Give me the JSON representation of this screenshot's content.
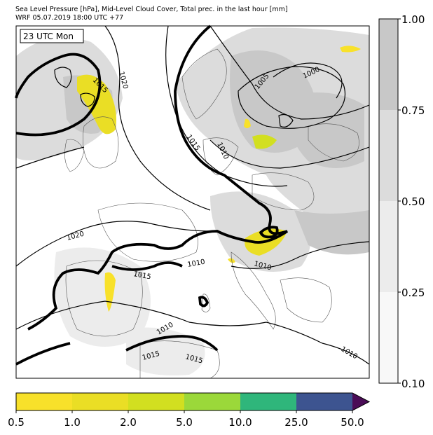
{
  "header": {
    "line1": "Sea Level Pressure [hPa], Mid-Level Cloud Cover, Total prec. in the last hour [mm]",
    "line2": "WRF 05.07.2019 18:00 UTC +77"
  },
  "map": {
    "time_label": "23 UTC Mon",
    "isobars": [
      {
        "value": "1020",
        "kind": "thin"
      },
      {
        "value": "1015",
        "kind": "thick"
      },
      {
        "value": "1010",
        "kind": "thin"
      },
      {
        "value": "1005",
        "kind": "thin"
      },
      {
        "value": "1000",
        "kind": "thin"
      }
    ],
    "isobar_labels": [
      "1015",
      "1020",
      "1015",
      "1010",
      "1005",
      "1000",
      "1020",
      "1015",
      "1010",
      "1010",
      "1010",
      "1015",
      "1015",
      "1010"
    ]
  },
  "cloud_colorbar": {
    "ticks": [
      "1.00",
      "0.75",
      "0.50",
      "0.25",
      "0.10"
    ],
    "colors": [
      "#c8c8c8",
      "#dcdcdc",
      "#ececec",
      "#f8f8f8"
    ]
  },
  "precip_colorbar": {
    "ticks": [
      "0.5",
      "1.0",
      "2.0",
      "5.0",
      "10.0",
      "25.0",
      "50.0"
    ],
    "colors": [
      "#f8e12a",
      "#eade25",
      "#d2df20",
      "#9bd83a",
      "#2fb67b",
      "#3d5490",
      "#4a0c56"
    ]
  }
}
